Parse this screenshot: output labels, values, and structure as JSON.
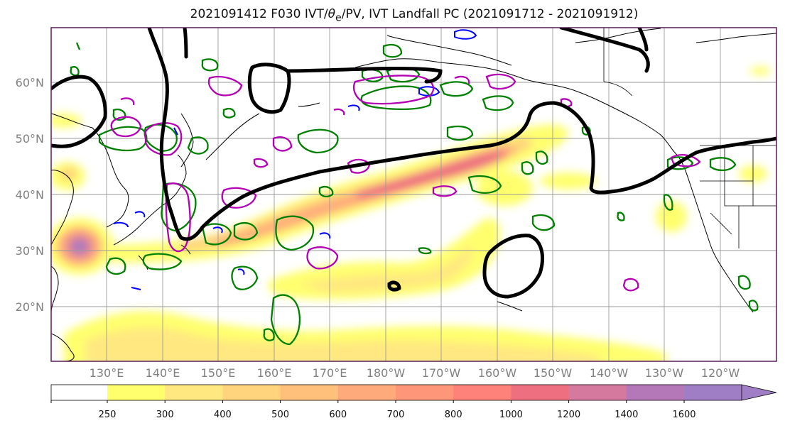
{
  "title": {
    "prefix": "2021091412 F030 IVT/",
    "theta": "θ",
    "theta_sub": "e",
    "suffix": "/PV, IVT Landfall PC (2021091712 - 2021091912)"
  },
  "lat_labels": [
    "60°N",
    "50°N",
    "40°N",
    "30°N",
    "20°N"
  ],
  "lon_labels": [
    "130°E",
    "140°E",
    "150°E",
    "160°E",
    "170°E",
    "180°W",
    "170°W",
    "160°W",
    "150°W",
    "140°W",
    "130°W",
    "120°W"
  ],
  "colorbar": {
    "ticks": [
      "250",
      "300",
      "400",
      "500",
      "600",
      "700",
      "800",
      "1000",
      "1200",
      "1400",
      "1600"
    ],
    "colors": [
      "#ffff6e",
      "#ffe880",
      "#ffd47c",
      "#ffc07b",
      "#ffaa7a",
      "#fe9679",
      "#fe8279",
      "#ee7080",
      "#d57a9e",
      "#b477b8",
      "#a07ec6"
    ]
  },
  "contour_colors": {
    "pv": "#000000",
    "theta_e": "#008000",
    "ivt_line": "#b300b3",
    "pv_blue": "#0000ff"
  }
}
